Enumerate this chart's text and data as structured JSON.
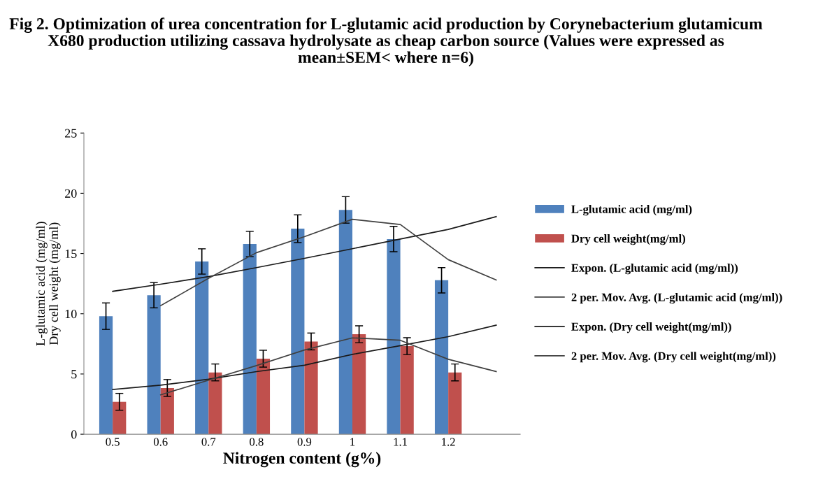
{
  "chart_data": {
    "type": "bar",
    "title": "Fig 2. Optimization of urea concentration for L-glutamic acid production by Corynebacterium glutamicum X680 production utilizing cassava hydrolysate as cheap carbon source (Values were expressed as mean±SEM< where n=6)",
    "xlabel": "Nitrogen content (g%)",
    "ylabel": "L-glutamic acid (mg/ml)\nDry cell weight (mg/ml)",
    "categories": [
      "0.5",
      "0.6",
      "0.7",
      "0.8",
      "0.9",
      "1",
      "1.1",
      "1.2",
      null
    ],
    "ylim": [
      0,
      25
    ],
    "yticks": [
      0,
      5,
      10,
      15,
      20,
      25
    ],
    "grid": false,
    "legend": "right",
    "series": [
      {
        "name": "L-glutamic acid (mg/ml)",
        "color": "#4f81bd",
        "values": [
          9.8,
          11.54,
          14.34,
          15.79,
          17.06,
          18.62,
          16.2,
          12.78,
          null
        ],
        "errors": [
          1.1,
          1.05,
          1.05,
          1.05,
          1.15,
          1.1,
          1.05,
          1.05,
          null
        ]
      },
      {
        "name": "Dry cell weight(mg/ml)",
        "color": "#c0504d",
        "values": [
          2.69,
          3.84,
          5.13,
          6.27,
          7.7,
          8.3,
          7.31,
          5.13,
          null
        ],
        "errors": [
          0.7,
          0.7,
          0.7,
          0.7,
          0.7,
          0.7,
          0.7,
          0.7,
          null
        ]
      },
      {
        "name": "Expon. (L-glutamic acid (mg/ml))",
        "type": "line",
        "color": "#1a1a1a",
        "values": [
          11.86,
          12.45,
          13.08,
          13.83,
          14.6,
          15.4,
          16.2,
          17.0,
          18.06
        ]
      },
      {
        "name": "2 per. Mov. Avg. (L-glutamic acid (mg/ml))",
        "type": "line",
        "color": "#404040",
        "values": [
          null,
          10.67,
          12.94,
          15.07,
          16.4,
          17.84,
          17.41,
          14.49,
          12.8
        ]
      },
      {
        "name": "Expon. (Dry cell weight(mg/ml))",
        "type": "line",
        "color": "#1a1a1a",
        "values": [
          3.71,
          4.07,
          4.57,
          5.2,
          5.73,
          6.63,
          7.35,
          8.1,
          9.05
        ]
      },
      {
        "name": "2 per. Mov. Avg. (Dry cell weight(mg/ml))",
        "type": "line",
        "color": "#404040",
        "values": [
          null,
          3.27,
          4.49,
          5.7,
          6.99,
          8.0,
          7.8,
          6.22,
          5.2
        ]
      }
    ]
  }
}
